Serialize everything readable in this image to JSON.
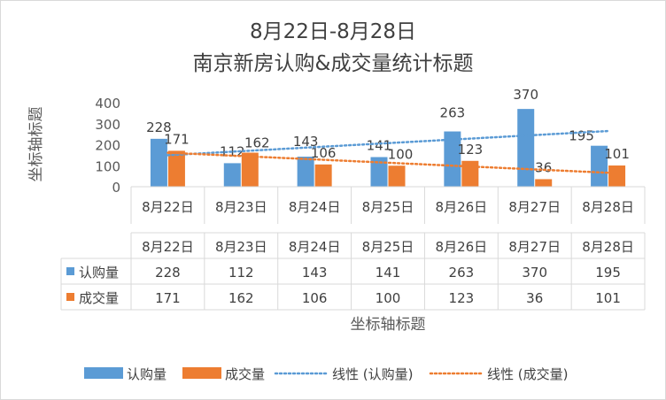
{
  "chart_data": {
    "type": "bar",
    "title_line1": "8月22日-8月28日",
    "title_line2": "南京新房认购&成交量统计标题",
    "ylabel": "坐标轴标题",
    "xlabel": "坐标轴标题",
    "ylim": [
      0,
      400
    ],
    "yticks": [
      0,
      100,
      200,
      300,
      400
    ],
    "grid": false,
    "legend_position": "bottom",
    "categories": [
      "8月22日",
      "8月23日",
      "8月24日",
      "8月25日",
      "8月26日",
      "8月27日",
      "8月28日"
    ],
    "series": [
      {
        "name": "认购量",
        "color": "#5b9bd5",
        "values": [
          228,
          112,
          143,
          141,
          263,
          370,
          195
        ]
      },
      {
        "name": "成交量",
        "color": "#ed7d31",
        "values": [
          171,
          162,
          106,
          100,
          123,
          36,
          101
        ]
      }
    ],
    "trendlines": [
      {
        "name": "线性 (认购量)",
        "color": "#5b9bd5",
        "series_index": 0
      },
      {
        "name": "线性 (成交量)",
        "color": "#ed7d31",
        "series_index": 1
      }
    ],
    "data_table": true
  }
}
